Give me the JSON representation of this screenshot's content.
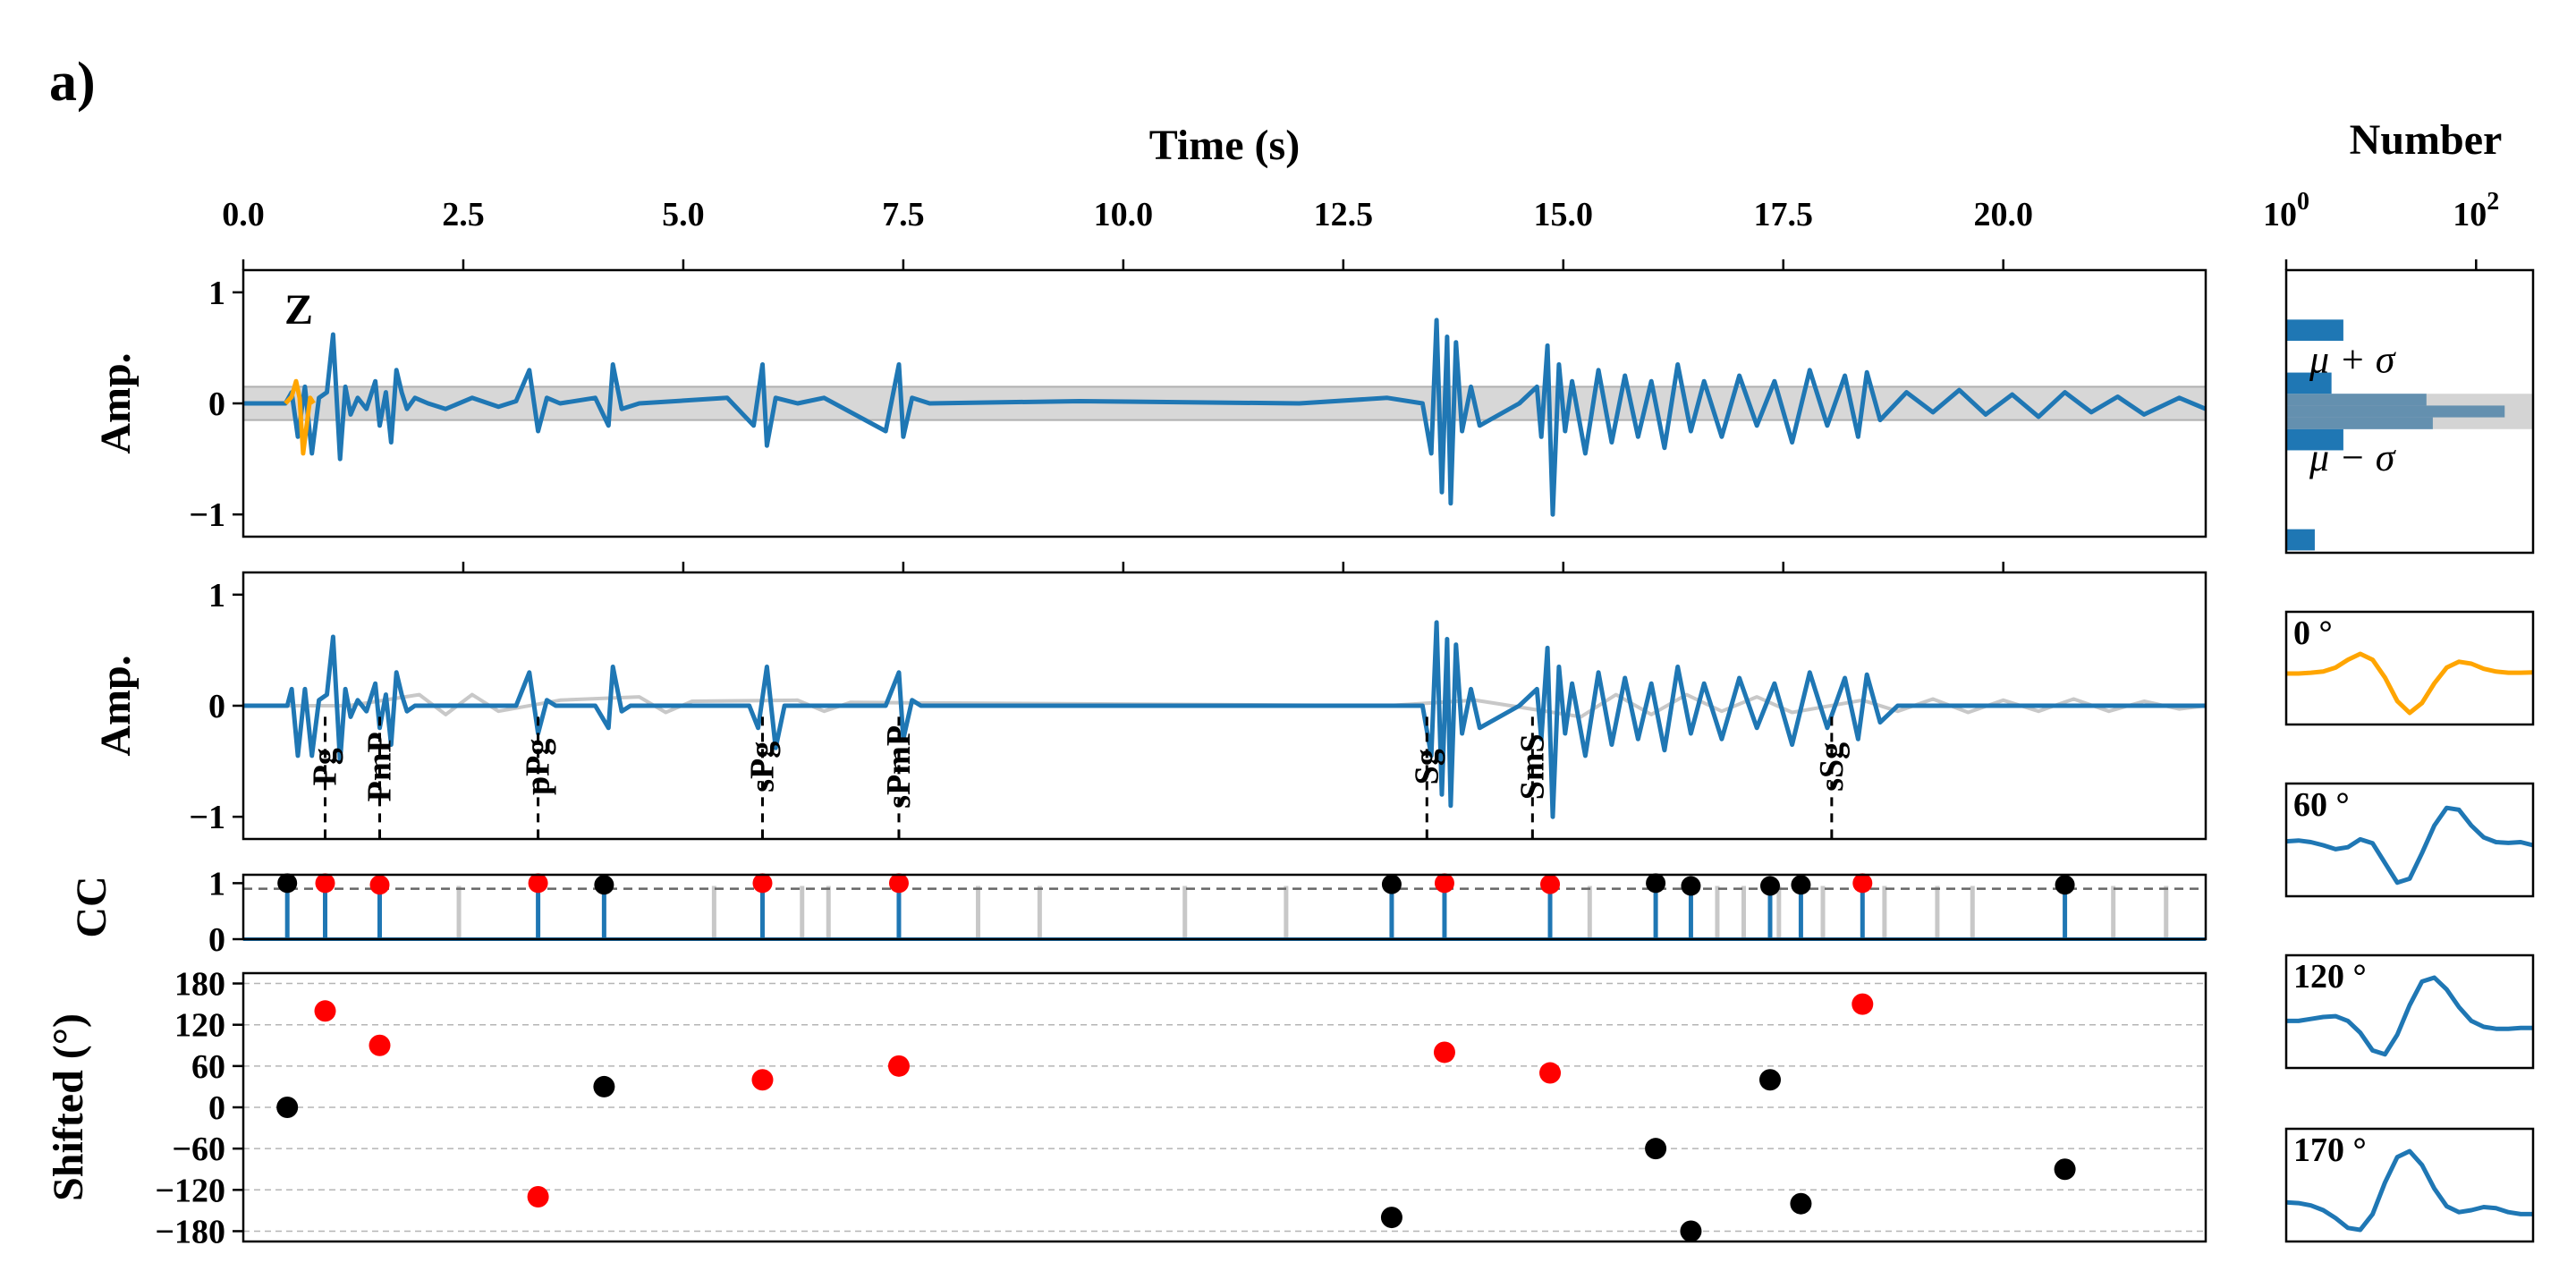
{
  "panel_label": "a)",
  "colors": {
    "blue": "#1f77b4",
    "orange": "#ffa500",
    "red": "#ff0000",
    "black": "#000000",
    "gray": "#c8c8c8",
    "band": "#d3d3d3"
  },
  "chart_data": [
    {
      "type": "line",
      "panel": "waveform-z",
      "xlabel": "Time (s)",
      "ylabel": "Amp.",
      "annotation": "Z",
      "xlim": [
        0,
        22.3
      ],
      "ylim": [
        -1.2,
        1.2
      ],
      "xticks": [
        0.0,
        2.5,
        5.0,
        7.5,
        10.0,
        12.5,
        15.0,
        17.5,
        20.0
      ],
      "xtick_labels": [
        "0.0",
        "2.5",
        "5.0",
        "7.5",
        "10.0",
        "12.5",
        "15.0",
        "17.5",
        "20.0"
      ],
      "yticks": [
        1,
        0,
        -1
      ],
      "ytick_labels": [
        "1",
        "0",
        "−1"
      ],
      "band": [
        -0.15,
        0.15
      ],
      "series": [
        {
          "role": "wavelet",
          "color": "orange",
          "x": [
            0.48,
            0.55,
            0.6,
            0.64,
            0.68,
            0.72,
            0.76,
            0.8
          ],
          "y": [
            0,
            0.06,
            0.2,
            0.05,
            -0.45,
            -0.2,
            0.05,
            0
          ]
        },
        {
          "role": "trace",
          "color": "blue",
          "x": [
            0,
            0.48,
            0.55,
            0.62,
            0.7,
            0.78,
            0.86,
            0.95,
            1.02,
            1.1,
            1.16,
            1.22,
            1.3,
            1.4,
            1.5,
            1.55,
            1.62,
            1.68,
            1.74,
            1.8,
            1.86,
            1.95,
            2.1,
            2.3,
            2.6,
            2.9,
            3.1,
            3.25,
            3.35,
            3.45,
            3.6,
            4.0,
            4.15,
            4.2,
            4.3,
            4.5,
            5.5,
            5.8,
            5.9,
            5.95,
            6.05,
            6.3,
            6.6,
            7.3,
            7.45,
            7.5,
            7.6,
            7.8,
            9.5,
            12.0,
            13.0,
            13.4,
            13.5,
            13.56,
            13.62,
            13.68,
            13.72,
            13.78,
            13.85,
            13.95,
            14.05,
            14.5,
            14.7,
            14.75,
            14.82,
            14.88,
            14.95,
            15.02,
            15.1,
            15.25,
            15.4,
            15.55,
            15.7,
            15.85,
            16.0,
            16.15,
            16.3,
            16.45,
            16.6,
            16.8,
            17.0,
            17.2,
            17.4,
            17.6,
            17.8,
            18.0,
            18.2,
            18.35,
            18.45,
            18.6,
            18.9,
            19.2,
            19.5,
            19.8,
            20.1,
            20.4,
            20.7,
            21.0,
            21.3,
            21.6,
            22.0,
            22.3
          ],
          "y": [
            0,
            0,
            0.1,
            -0.3,
            0.15,
            -0.45,
            0.05,
            0.1,
            0.62,
            -0.5,
            0.15,
            -0.1,
            0.05,
            -0.05,
            0.2,
            -0.2,
            0.1,
            -0.35,
            0.3,
            0.1,
            -0.05,
            0.05,
            0.0,
            -0.05,
            0.05,
            -0.03,
            0.02,
            0.3,
            -0.25,
            0.05,
            0.0,
            0.05,
            -0.2,
            0.35,
            -0.05,
            0.0,
            0.05,
            -0.2,
            0.35,
            -0.38,
            0.05,
            0.0,
            0.05,
            -0.25,
            0.35,
            -0.3,
            0.05,
            0.0,
            0.02,
            0.0,
            0.05,
            0.0,
            -0.45,
            0.75,
            -0.8,
            0.6,
            -0.9,
            0.55,
            -0.25,
            0.15,
            -0.2,
            0.0,
            0.15,
            -0.3,
            0.52,
            -1.0,
            0.35,
            -0.25,
            0.2,
            -0.45,
            0.3,
            -0.35,
            0.25,
            -0.3,
            0.2,
            -0.4,
            0.35,
            -0.25,
            0.2,
            -0.3,
            0.25,
            -0.2,
            0.2,
            -0.35,
            0.3,
            -0.2,
            0.25,
            -0.3,
            0.28,
            -0.15,
            0.1,
            -0.08,
            0.12,
            -0.1,
            0.08,
            -0.12,
            0.1,
            -0.08,
            0.06,
            -0.1,
            0.05,
            -0.05
          ]
        }
      ]
    },
    {
      "type": "line",
      "panel": "waveform-windowed",
      "ylabel": "Amp.",
      "xlim": [
        0,
        22.3
      ],
      "ylim": [
        -1.2,
        1.2
      ],
      "yticks": [
        1,
        0,
        -1
      ],
      "ytick_labels": [
        "1",
        "0",
        "−1"
      ],
      "phases": [
        {
          "label": "Pg",
          "x": 0.93
        },
        {
          "label": "PmP",
          "x": 1.55
        },
        {
          "label": "pPg",
          "x": 3.35
        },
        {
          "label": "sPg",
          "x": 5.9
        },
        {
          "label": "sPmP",
          "x": 7.45
        },
        {
          "label": "Sg",
          "x": 13.45
        },
        {
          "label": "SmS",
          "x": 14.65
        },
        {
          "label": "sSg",
          "x": 18.05
        }
      ],
      "series": [
        {
          "role": "original",
          "color": "gray",
          "x": [
            0,
            1.2,
            2.0,
            2.3,
            2.6,
            2.9,
            3.6,
            4.5,
            4.8,
            5.1,
            6.3,
            6.6,
            6.9,
            13.0,
            14.0,
            15.2,
            15.6,
            16.0,
            16.4,
            16.8,
            17.2,
            17.6,
            18.4,
            18.8,
            19.2,
            19.6,
            20.0,
            20.4,
            20.8,
            21.2,
            21.6,
            22.0,
            22.3
          ],
          "y": [
            0,
            0,
            0.1,
            -0.08,
            0.1,
            -0.05,
            0.05,
            0.08,
            -0.06,
            0.04,
            0.05,
            -0.05,
            0.03,
            0.0,
            0.05,
            -0.1,
            0.1,
            -0.08,
            0.1,
            -0.05,
            0.08,
            -0.06,
            0.05,
            -0.05,
            0.06,
            -0.06,
            0.05,
            -0.05,
            0.06,
            -0.05,
            0.04,
            -0.03,
            0.0
          ]
        },
        {
          "role": "windowed",
          "color": "blue",
          "x": [
            0,
            0.5,
            0.55,
            0.62,
            0.7,
            0.78,
            0.86,
            0.95,
            1.02,
            1.1,
            1.16,
            1.22,
            1.3,
            1.4,
            1.5,
            1.55,
            1.62,
            1.68,
            1.74,
            1.8,
            1.86,
            1.95,
            3.1,
            3.25,
            3.35,
            3.45,
            3.55,
            4.0,
            4.15,
            4.2,
            4.3,
            4.4,
            5.75,
            5.85,
            5.95,
            6.05,
            6.15,
            7.3,
            7.45,
            7.5,
            7.6,
            7.7,
            13.0,
            13.4,
            13.5,
            13.56,
            13.62,
            13.68,
            13.72,
            13.78,
            13.85,
            13.95,
            14.05,
            14.5,
            14.7,
            14.75,
            14.82,
            14.88,
            14.95,
            15.02,
            15.1,
            15.25,
            15.4,
            15.55,
            15.7,
            15.85,
            16.0,
            16.15,
            16.3,
            16.45,
            16.6,
            16.8,
            17.0,
            17.2,
            17.4,
            17.6,
            17.8,
            18.0,
            18.2,
            18.35,
            18.45,
            18.6,
            18.8,
            22.3
          ],
          "y": [
            0,
            0,
            0.15,
            -0.45,
            0.15,
            -0.45,
            0.05,
            0.1,
            0.62,
            -0.5,
            0.15,
            -0.1,
            0.05,
            -0.05,
            0.2,
            -0.2,
            0.1,
            -0.35,
            0.3,
            0.1,
            -0.05,
            0.0,
            0.0,
            0.3,
            -0.25,
            0.05,
            0.0,
            0.0,
            -0.2,
            0.35,
            -0.05,
            0.0,
            0.0,
            -0.2,
            0.35,
            -0.38,
            0.0,
            0.0,
            0.3,
            -0.3,
            0.05,
            0.0,
            0.0,
            0.0,
            -0.45,
            0.75,
            -0.8,
            0.6,
            -0.9,
            0.55,
            -0.25,
            0.15,
            -0.2,
            0.0,
            0.15,
            -0.3,
            0.52,
            -1.0,
            0.35,
            -0.25,
            0.2,
            -0.45,
            0.3,
            -0.35,
            0.25,
            -0.3,
            0.2,
            -0.4,
            0.35,
            -0.25,
            0.2,
            -0.3,
            0.25,
            -0.2,
            0.2,
            -0.35,
            0.3,
            -0.2,
            0.25,
            -0.3,
            0.28,
            -0.15,
            0.0,
            0.0
          ]
        }
      ]
    },
    {
      "type": "scatter",
      "panel": "cross-correlation",
      "ylabel": "CC",
      "xlim": [
        0,
        22.3
      ],
      "ylim": [
        0,
        1.15
      ],
      "yticks": [
        1,
        0
      ],
      "ytick_labels": [
        "1",
        "0"
      ],
      "threshold": 0.9,
      "background_stems": [
        2.45,
        5.35,
        6.35,
        6.65,
        8.35,
        9.05,
        10.7,
        11.85,
        15.3,
        16.75,
        17.05,
        17.45,
        17.95,
        18.65,
        19.25,
        19.65,
        21.25,
        21.85
      ],
      "background_stem_height": 0.95,
      "picks": [
        {
          "x": 0.5,
          "cc": 1.0,
          "color": "black"
        },
        {
          "x": 0.93,
          "cc": 1.0,
          "color": "red"
        },
        {
          "x": 1.55,
          "cc": 0.97,
          "color": "red"
        },
        {
          "x": 3.35,
          "cc": 1.0,
          "color": "red"
        },
        {
          "x": 4.1,
          "cc": 0.97,
          "color": "black"
        },
        {
          "x": 5.9,
          "cc": 1.0,
          "color": "red"
        },
        {
          "x": 7.45,
          "cc": 1.0,
          "color": "red"
        },
        {
          "x": 13.05,
          "cc": 0.98,
          "color": "black"
        },
        {
          "x": 13.65,
          "cc": 1.0,
          "color": "red"
        },
        {
          "x": 14.85,
          "cc": 0.98,
          "color": "red"
        },
        {
          "x": 16.05,
          "cc": 1.0,
          "color": "black"
        },
        {
          "x": 16.45,
          "cc": 0.95,
          "color": "black"
        },
        {
          "x": 17.35,
          "cc": 0.95,
          "color": "black"
        },
        {
          "x": 17.7,
          "cc": 0.97,
          "color": "black"
        },
        {
          "x": 18.4,
          "cc": 1.0,
          "color": "red"
        },
        {
          "x": 20.7,
          "cc": 0.97,
          "color": "black"
        }
      ]
    },
    {
      "type": "scatter",
      "panel": "phase-shift",
      "ylabel": "Shifted (°)",
      "xlim": [
        0,
        22.3
      ],
      "ylim": [
        -195,
        195
      ],
      "yticks": [
        180,
        120,
        60,
        0,
        -60,
        -120,
        -180
      ],
      "ytick_labels": [
        "180",
        "120",
        "60",
        "0",
        "−60",
        "−120",
        "−180"
      ],
      "points": [
        {
          "x": 0.5,
          "y": 0,
          "color": "black"
        },
        {
          "x": 0.93,
          "y": 140,
          "color": "red"
        },
        {
          "x": 1.55,
          "y": 90,
          "color": "red"
        },
        {
          "x": 3.35,
          "y": -130,
          "color": "red"
        },
        {
          "x": 4.1,
          "y": 30,
          "color": "black"
        },
        {
          "x": 5.9,
          "y": 40,
          "color": "red"
        },
        {
          "x": 7.45,
          "y": 60,
          "color": "red"
        },
        {
          "x": 13.05,
          "y": -160,
          "color": "black"
        },
        {
          "x": 13.65,
          "y": 80,
          "color": "red"
        },
        {
          "x": 14.85,
          "y": 50,
          "color": "red"
        },
        {
          "x": 16.05,
          "y": -60,
          "color": "black"
        },
        {
          "x": 16.45,
          "y": -180,
          "color": "black"
        },
        {
          "x": 17.35,
          "y": 40,
          "color": "black"
        },
        {
          "x": 17.7,
          "y": -140,
          "color": "black"
        },
        {
          "x": 18.4,
          "y": 150,
          "color": "red"
        },
        {
          "x": 20.7,
          "y": -90,
          "color": "black"
        }
      ]
    },
    {
      "type": "bar",
      "panel": "histogram",
      "orientation": "horizontal",
      "xlabel": "Number",
      "xscale": "log",
      "xlim_log10": [
        0,
        2.6
      ],
      "xticks_exponent": [
        0,
        2
      ],
      "xtick_labels": [
        {
          "base": "10",
          "exp": "0"
        },
        {
          "base": "10",
          "exp": "2"
        }
      ],
      "ylim": [
        -1.2,
        1.2
      ],
      "band": [
        -0.15,
        0.15
      ],
      "band_labels": {
        "upper": "μ + σ",
        "lower": "μ − σ"
      },
      "bins": [
        {
          "y0": 0.6,
          "y1": 0.78,
          "count": 4
        },
        {
          "y0": 0.15,
          "y1": 0.33,
          "count": 3
        },
        {
          "y0": 0.05,
          "y1": 0.15,
          "count": 30
        },
        {
          "y0": -0.05,
          "y1": 0.05,
          "count": 200
        },
        {
          "y0": -0.15,
          "y1": -0.05,
          "count": 35
        },
        {
          "y0": -0.33,
          "y1": -0.15,
          "count": 4
        },
        {
          "y0": -1.18,
          "y1": -1.0,
          "count": 2
        }
      ]
    },
    {
      "type": "line",
      "panel": "wavelets",
      "wavelets": [
        {
          "label": "0 °",
          "color": "orange",
          "y": [
            0.0,
            0.0,
            0.02,
            0.05,
            0.15,
            0.35,
            0.5,
            0.35,
            -0.1,
            -0.7,
            -1.0,
            -0.75,
            -0.25,
            0.15,
            0.3,
            0.25,
            0.12,
            0.05,
            0.02,
            0.02,
            0.03
          ]
        },
        {
          "label": "60 °",
          "color": "blue",
          "y": [
            0.1,
            0.12,
            0.08,
            0.0,
            -0.1,
            -0.05,
            0.15,
            0.05,
            -0.45,
            -0.95,
            -0.85,
            -0.2,
            0.5,
            0.95,
            0.9,
            0.5,
            0.2,
            0.08,
            0.06,
            0.08,
            0.0
          ]
        },
        {
          "label": "120 °",
          "color": "blue",
          "y": [
            -0.1,
            -0.1,
            -0.05,
            0.0,
            0.02,
            -0.1,
            -0.4,
            -0.85,
            -0.95,
            -0.45,
            0.3,
            0.9,
            1.0,
            0.7,
            0.25,
            -0.1,
            -0.25,
            -0.3,
            -0.3,
            -0.28,
            -0.28
          ]
        },
        {
          "label": "170 °",
          "color": "blue",
          "y": [
            -0.3,
            -0.32,
            -0.38,
            -0.5,
            -0.7,
            -0.95,
            -1.0,
            -0.6,
            0.2,
            0.85,
            1.0,
            0.65,
            0.05,
            -0.4,
            -0.55,
            -0.5,
            -0.42,
            -0.45,
            -0.55,
            -0.6,
            -0.6
          ]
        }
      ]
    }
  ]
}
